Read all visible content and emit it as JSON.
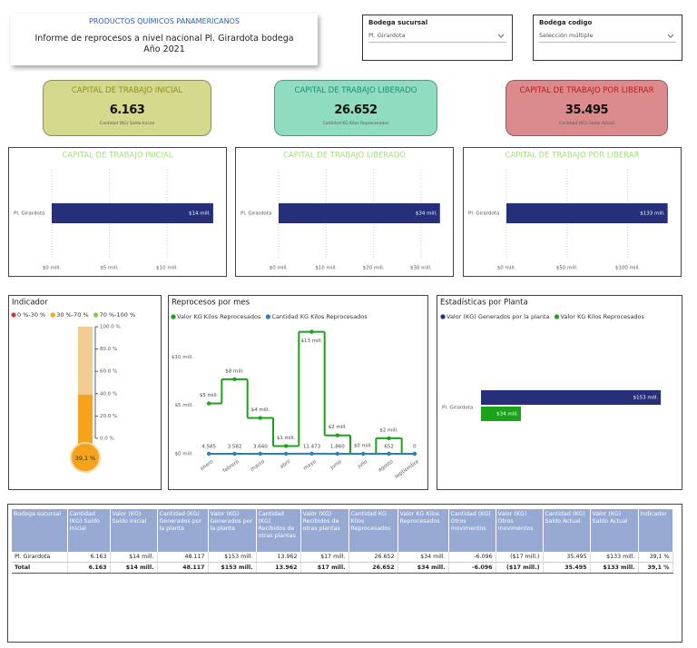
{
  "header": {
    "company": "PRODUCTOS QUÍMICOS PANAMERICANOS",
    "title": "Informe de reprocesos a nivel nacional Pl. Girardota bodega",
    "year": "Año 2021"
  },
  "slicers": [
    {
      "label": "Bodega sucursal",
      "value": "Pl. Girardota"
    },
    {
      "label": "Bodega codigo",
      "value": "Selección múltiple"
    }
  ],
  "cards": [
    {
      "title": "CAPITAL DE TRABAJO INICIAL",
      "value": "6.163",
      "subtitle": "Cantidad (KG) Saldo Inicial",
      "color": "#d5d98c",
      "title_color": "#8c8f1e"
    },
    {
      "title": "CAPITAL DE TRABAJO LIBERADO",
      "value": "26.652",
      "subtitle": "Cantidad KG Kilos Reprocesados",
      "color": "#8fdcc0",
      "title_color": "#1a8f72"
    },
    {
      "title": "CAPITAL DE TRABAJO POR LIBERAR",
      "value": "35.495",
      "subtitle": "Cantidad (KG) Saldo Actual",
      "color": "#dc8b8c",
      "title_color": "#c01522"
    }
  ],
  "chart_data": [
    {
      "type": "bar",
      "orientation": "horizontal",
      "title": "CAPITAL DE TRABAJO INICIAL",
      "title_color": "#a3e36b",
      "categories": [
        "Pl. Girardota"
      ],
      "values": [
        14000000
      ],
      "value_labels": [
        "$14 mill."
      ],
      "color": "#252f7a",
      "xlim": [
        0,
        14400000
      ],
      "xticks": [
        {
          "value": 0,
          "label": "$0 mill."
        },
        {
          "value": 5000000,
          "label": "$5 mill."
        },
        {
          "value": 10000000,
          "label": "$10 mill."
        }
      ],
      "grid": true
    },
    {
      "type": "bar",
      "orientation": "horizontal",
      "title": "CAPITAL DE TRABAJO LIBERADO",
      "title_color": "#a3e36b",
      "categories": [
        "Pl. Girardota"
      ],
      "values": [
        34000000
      ],
      "value_labels": [
        "$34 mill."
      ],
      "color": "#252f7a",
      "xlim": [
        0,
        35000000
      ],
      "xticks": [
        {
          "value": 0,
          "label": "$0 mill."
        },
        {
          "value": 10000000,
          "label": "$10 mill."
        },
        {
          "value": 20000000,
          "label": "$20 mill."
        },
        {
          "value": 30000000,
          "label": "$30 mill."
        }
      ],
      "grid": true
    },
    {
      "type": "bar",
      "orientation": "horizontal",
      "title": "CAPITAL DE TRABAJO POR LIBERAR",
      "title_color": "#a3e36b",
      "categories": [
        "Pl. Girardota"
      ],
      "values": [
        133000000
      ],
      "value_labels": [
        "$133 mill."
      ],
      "color": "#252f7a",
      "xlim": [
        0,
        137000000
      ],
      "xticks": [
        {
          "value": 0,
          "label": "$0 mill."
        },
        {
          "value": 50000000,
          "label": "$50 mill."
        },
        {
          "value": 100000000,
          "label": "$100 mill."
        }
      ],
      "grid": true
    },
    {
      "type": "gauge",
      "title": "Indicador",
      "legend": [
        {
          "name": "0 %-30 %",
          "color": "#d13a2f"
        },
        {
          "name": "30 %-70 %",
          "color": "#f7a51f"
        },
        {
          "name": "70 %-100 %",
          "color": "#7dd13b"
        }
      ],
      "value": 39.1,
      "value_label": "39,1 %",
      "color": "#f5a31a",
      "track_color": "#f1cd93",
      "ylim": [
        0,
        100
      ],
      "yticks": [
        {
          "value": 0,
          "label": "0.0 %"
        },
        {
          "value": 20,
          "label": "20.0 %"
        },
        {
          "value": 40,
          "label": "40.0 %"
        },
        {
          "value": 60,
          "label": "60.0 %"
        },
        {
          "value": 80,
          "label": "80.0 %"
        },
        {
          "value": 100,
          "label": "100.0 %"
        }
      ]
    },
    {
      "type": "line",
      "title": "Reprocesos por mes",
      "categories": [
        "enero",
        "febrero",
        "marzo",
        "abril",
        "mayo",
        "junio",
        "julio",
        "agosto",
        "septiembre"
      ],
      "series": [
        {
          "name": "Valor KG Kilos Reprocesados",
          "color": "#1aa31a",
          "line_shape": "step",
          "values": [
            5200000,
            7700000,
            3700000,
            800000,
            12600000,
            1900000,
            0,
            1600000,
            0
          ],
          "value_labels": [
            "$5 mill.",
            "$8 mill.",
            "$4 mill.",
            "$1 mill.",
            "$13 mill.",
            "$2 mill.",
            "$0 mill.",
            "$2 mill.",
            null
          ]
        },
        {
          "name": "Cantidad KG Kilos Reprocesados",
          "color": "#2a7fc1",
          "values": [
            4585,
            3582,
            3640,
            860,
            11473,
            1860,
            0,
            652,
            0
          ],
          "value_labels": [
            "4.585",
            "3.582",
            "3.640",
            null,
            "11.473",
            "1.860",
            null,
            "652",
            "0"
          ]
        }
      ],
      "ylim": [
        0,
        13500000
      ],
      "yticks": [
        {
          "value": 0,
          "label": "$0 mill."
        },
        {
          "value": 5000000,
          "label": "$5 mill."
        },
        {
          "value": 10000000,
          "label": "$10 mill."
        }
      ]
    },
    {
      "type": "bar",
      "orientation": "horizontal",
      "title": "Estadísticas por Planta",
      "categories": [
        "Pl. Girardota"
      ],
      "series": [
        {
          "name": "Valor (KG) Generados por la planta",
          "color": "#252f7a",
          "values": [
            153000000
          ],
          "value_labels": [
            "$153 mill."
          ]
        },
        {
          "name": "Valor KG Kilos Reprocesados",
          "color": "#1aa31a",
          "values": [
            34000000
          ],
          "value_labels": [
            "$34 mill."
          ]
        }
      ],
      "xlim": [
        0,
        156000000
      ]
    }
  ],
  "table": {
    "columns": [
      "Bodega sucursal",
      "Cantidad (KG) Saldo Inicial",
      "Valor (KG) Saldo Inicial",
      "Cantidad (KG) Generados por la planta",
      "Valor (KG) Generados por la planta",
      "Cantidad (KG) Recibidos de otras plantas",
      "Valor (KG) Recibidos de otras plantas",
      "Cantidad KG Kilos Reprocesados",
      "Valor KG Kilos Reprocesados",
      "Cantidad (KG) Otros movimentos",
      "Valor (KG) Otros movimentos",
      "Cantidad (KG) Saldo Actual",
      "Valor (KG) Saldo Actual",
      "Indicador"
    ],
    "rows": [
      [
        "Pl. Girardota",
        "6.163",
        "$14 mill.",
        "48.117",
        "$153 mill.",
        "13.962",
        "$17 mill.",
        "26.652",
        "$34 mill.",
        "-6.096",
        "($17 mill.)",
        "35.495",
        "$133 mill.",
        "39,1 %"
      ],
      [
        "Total",
        "6.163",
        "$14 mill.",
        "48.117",
        "$153 mill.",
        "13.962",
        "$17 mill.",
        "26.652",
        "$34 mill.",
        "-6.096",
        "($17 mill.)",
        "35.495",
        "$133 mill.",
        "39,1 %"
      ]
    ]
  }
}
